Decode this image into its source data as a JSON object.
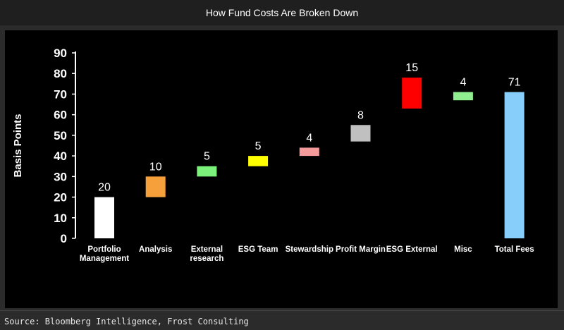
{
  "header": {
    "title": "How Fund Costs Are Broken Down"
  },
  "source": "Source: Bloomberg Intelligence, Frost Consulting",
  "chart_data": {
    "type": "bar",
    "subtype": "waterfall",
    "title": "How Fund Costs Are Broken Down",
    "ylabel": "Basis Points",
    "xlabel": "",
    "ylim": [
      0,
      90
    ],
    "yticks": [
      0,
      10,
      20,
      30,
      40,
      50,
      60,
      70,
      80,
      90
    ],
    "grid": false,
    "background": "#000000",
    "bars": [
      {
        "category": [
          "Portfolio",
          "Management"
        ],
        "start": 0,
        "end": 20,
        "label": "20",
        "color": "#ffffff"
      },
      {
        "category": [
          "Analysis"
        ],
        "start": 20,
        "end": 30,
        "label": "10",
        "color": "#f5a03a"
      },
      {
        "category": [
          "External",
          "research"
        ],
        "start": 30,
        "end": 35,
        "label": "5",
        "color": "#7cf27c"
      },
      {
        "category": [
          "ESG Team"
        ],
        "start": 35,
        "end": 40,
        "label": "5",
        "color": "#ffff00"
      },
      {
        "category": [
          "Stewardship"
        ],
        "start": 40,
        "end": 44,
        "label": "4",
        "color": "#f49a9a"
      },
      {
        "category": [
          "Profit Margin"
        ],
        "start": 47,
        "end": 55,
        "label": "8",
        "color": "#c0c0c0"
      },
      {
        "category": [
          "ESG External"
        ],
        "start": 63,
        "end": 78,
        "label": "15",
        "color": "#ff0000"
      },
      {
        "category": [
          "Misc"
        ],
        "start": 67,
        "end": 71,
        "label": "4",
        "color": "#90ee90"
      },
      {
        "category": [
          "Total Fees"
        ],
        "start": 0,
        "end": 71,
        "label": "71",
        "color": "#87cefa"
      }
    ]
  }
}
